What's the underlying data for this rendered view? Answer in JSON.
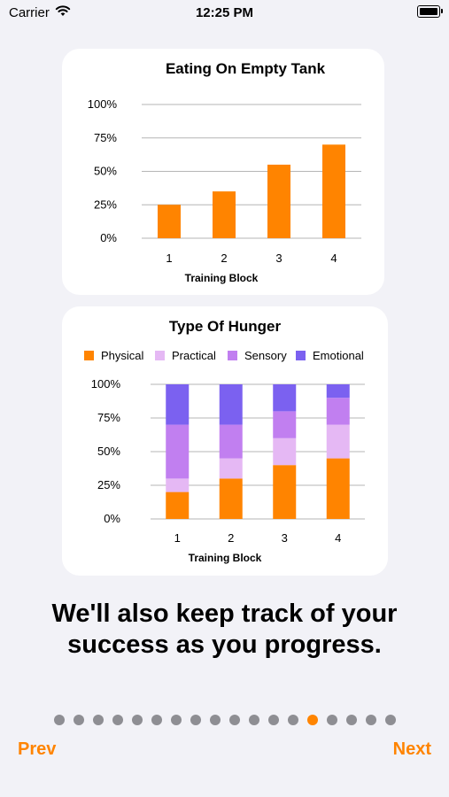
{
  "status_bar": {
    "carrier": "Carrier",
    "time": "12:25 PM"
  },
  "charts_cards": [
    {
      "title": "Eating On Empty Tank",
      "xlabel": "Training Block",
      "y_ticks": [
        "0%",
        "25%",
        "50%",
        "75%",
        "100%"
      ]
    },
    {
      "title": "Type Of Hunger",
      "xlabel": "Training Block",
      "y_ticks": [
        "0%",
        "25%",
        "50%",
        "75%",
        "100%"
      ],
      "legend": [
        "Physical",
        "Practical",
        "Sensory",
        "Emotional"
      ]
    }
  ],
  "chart_data": [
    {
      "type": "bar",
      "title": "Eating On Empty Tank",
      "xlabel": "Training Block",
      "ylabel": "",
      "categories": [
        "1",
        "2",
        "3",
        "4"
      ],
      "values": [
        25,
        35,
        55,
        70
      ],
      "ylim": [
        0,
        100
      ],
      "y_unit": "%",
      "color": "#ff8400",
      "grid": true
    },
    {
      "type": "bar",
      "stacked": true,
      "title": "Type Of Hunger",
      "xlabel": "Training Block",
      "ylabel": "",
      "categories": [
        "1",
        "2",
        "3",
        "4"
      ],
      "ylim": [
        0,
        100
      ],
      "y_unit": "%",
      "legend_position": "top",
      "grid": true,
      "series": [
        {
          "name": "Physical",
          "values": [
            20,
            30,
            40,
            45
          ],
          "color": "#ff8400"
        },
        {
          "name": "Practical",
          "values": [
            10,
            15,
            20,
            25
          ],
          "color": "#e5b8f4"
        },
        {
          "name": "Sensory",
          "values": [
            40,
            25,
            20,
            20
          ],
          "color": "#c17ff0"
        },
        {
          "name": "Emotional",
          "values": [
            30,
            30,
            20,
            10
          ],
          "color": "#7b61f0"
        }
      ]
    }
  ],
  "main": {
    "headline": "We'll also keep track of your success as you progress."
  },
  "pagination": {
    "total": 18,
    "active_index": 13
  },
  "nav": {
    "prev_label": "Prev",
    "next_label": "Next"
  },
  "colors": {
    "accent": "#ff8400",
    "background": "#f2f2f7",
    "dot_inactive": "#8e8e93"
  }
}
